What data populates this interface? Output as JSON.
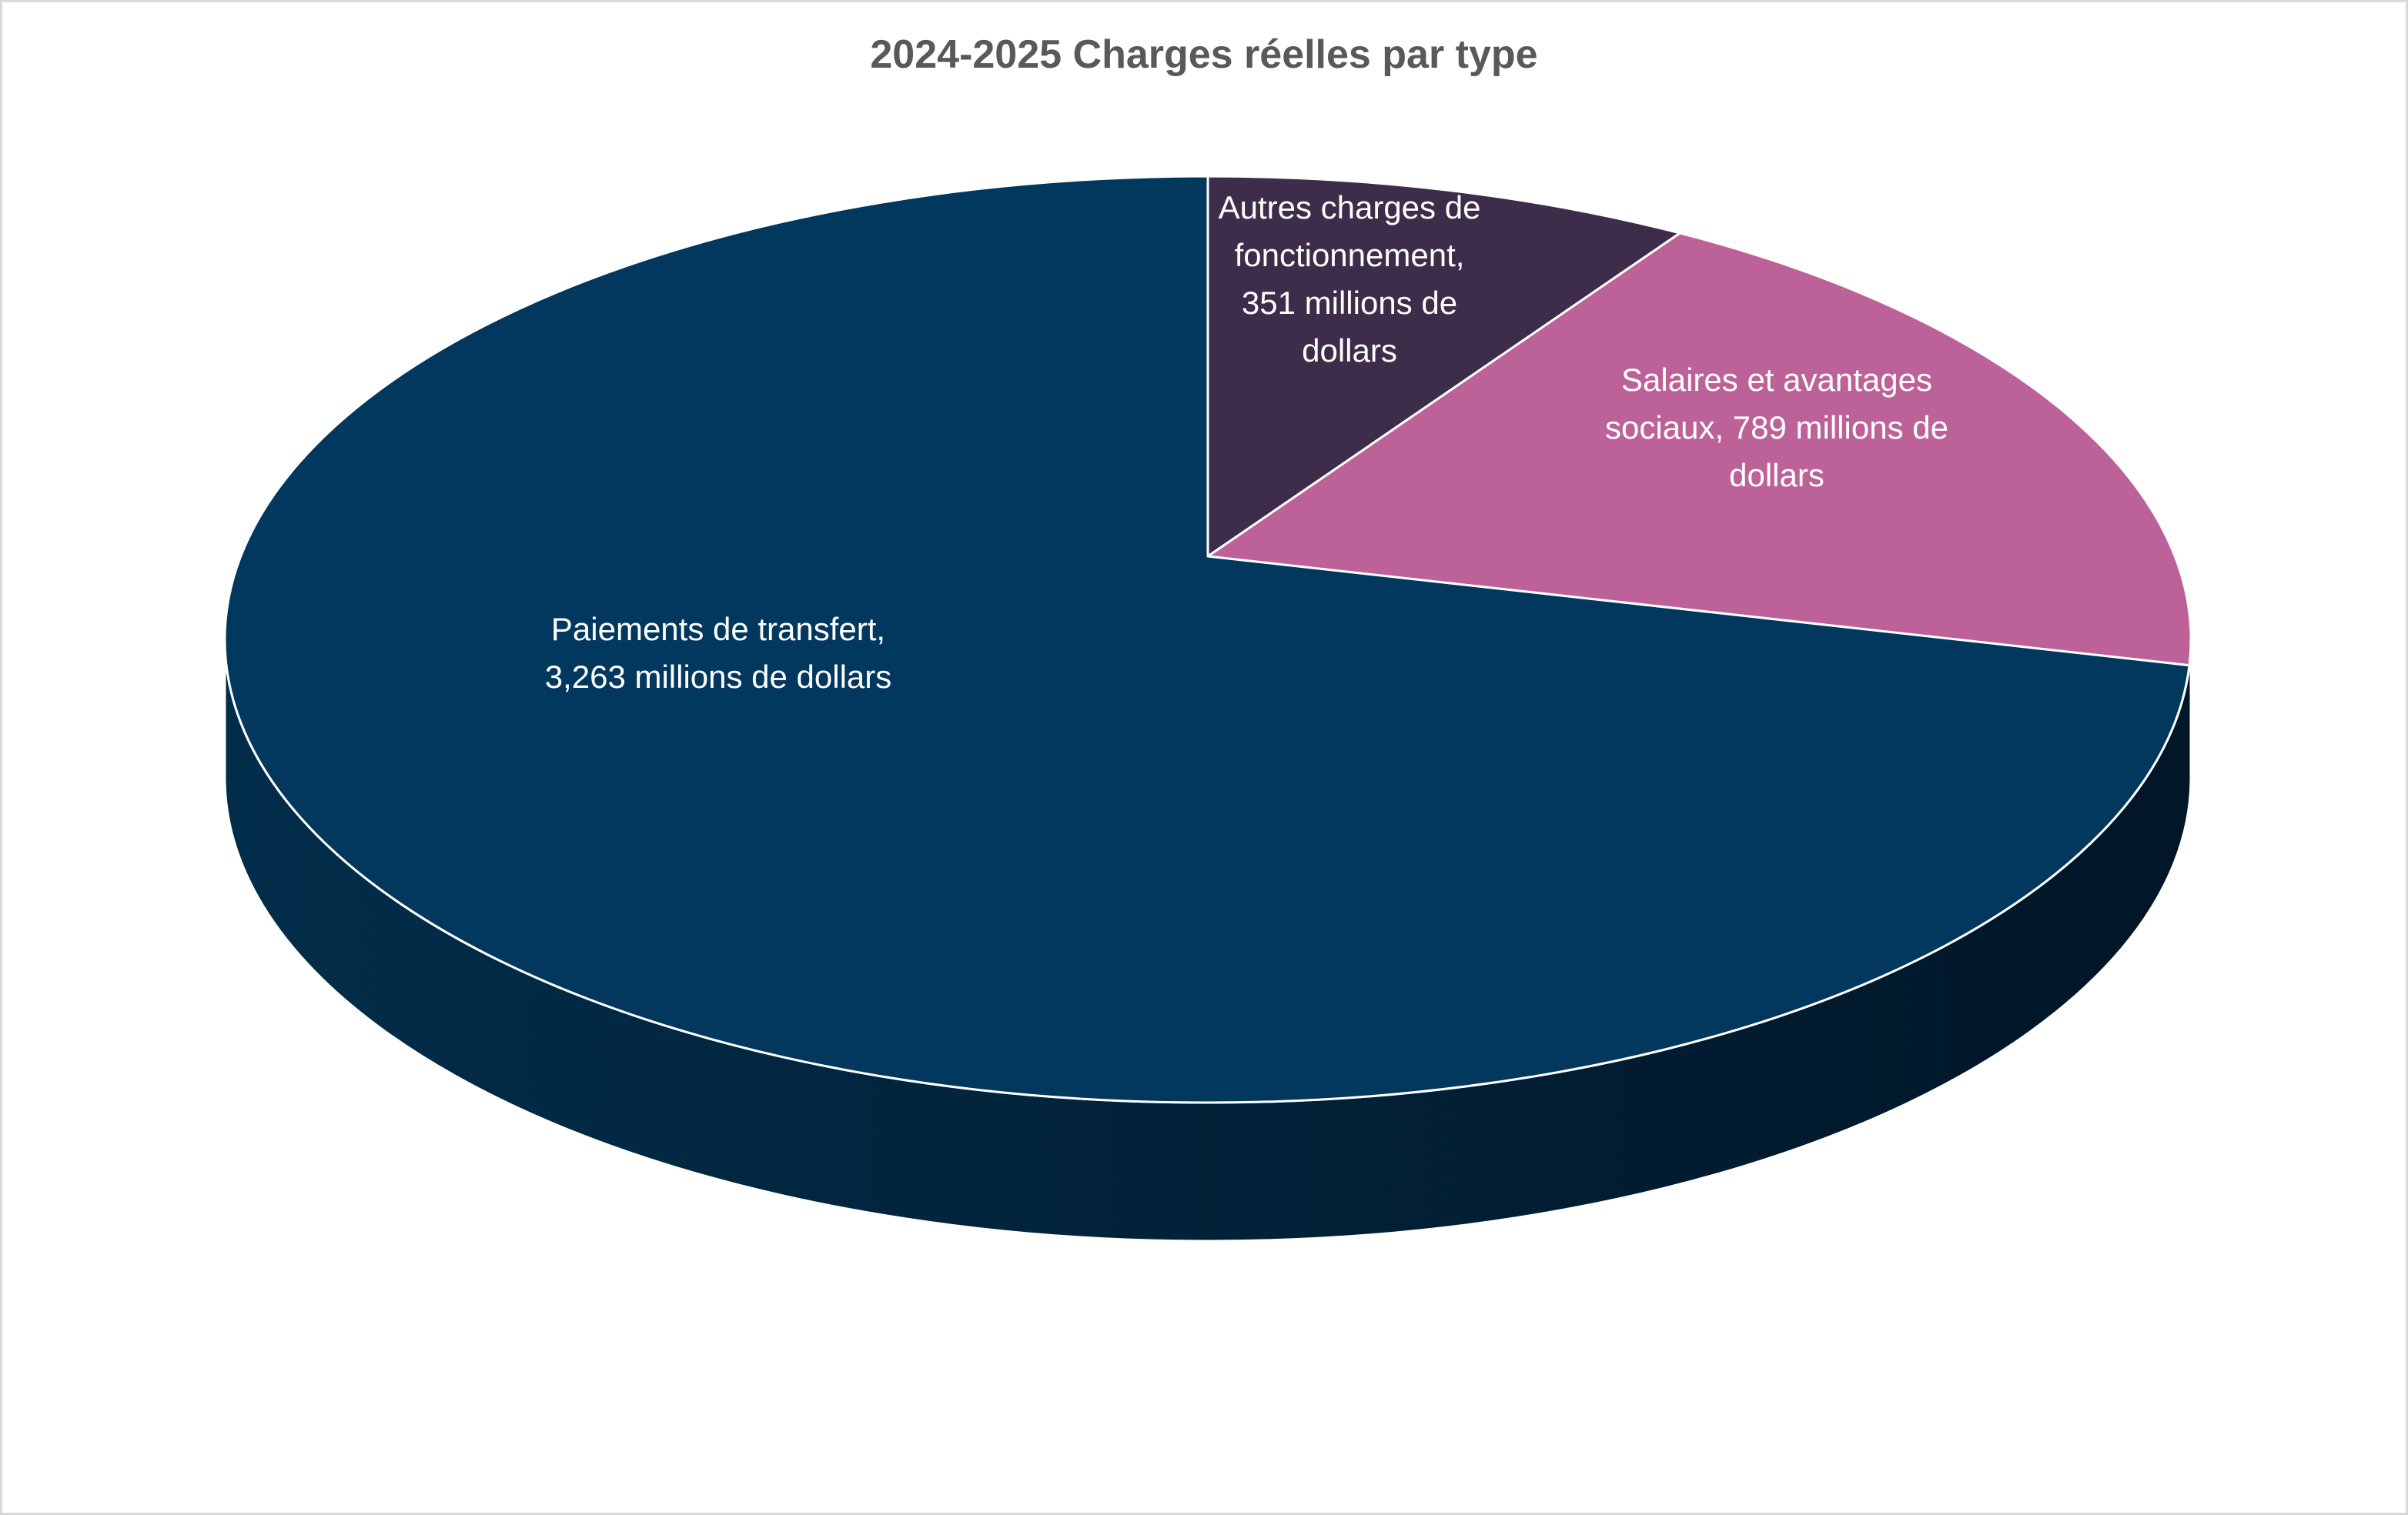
{
  "chart_data": {
    "type": "pie",
    "style": "3d",
    "title": "2024-2025 Charges réelles par type",
    "unit": "millions de dollars",
    "start_angle": "top, clockwise",
    "slices": [
      {
        "name": "Autres charges de fonctionnement",
        "value": 351,
        "label": "Autres charges de\nfonctionnement,\n351  millions de\ndollars",
        "color": "#3d2d4a"
      },
      {
        "name": "Salaires et avantages sociaux",
        "value": 789,
        "label": "Salaires et avantages\nsociaux, 789 millions de\ndollars",
        "color": "#bc6299"
      },
      {
        "name": "Paiements de transfert",
        "value": 3263,
        "label": "Paiements de transfert,\n3,263  millions de dollars",
        "color": "#02385e"
      }
    ],
    "side_colors": [
      "#022d4a",
      "#011627"
    ],
    "legend": "none"
  }
}
